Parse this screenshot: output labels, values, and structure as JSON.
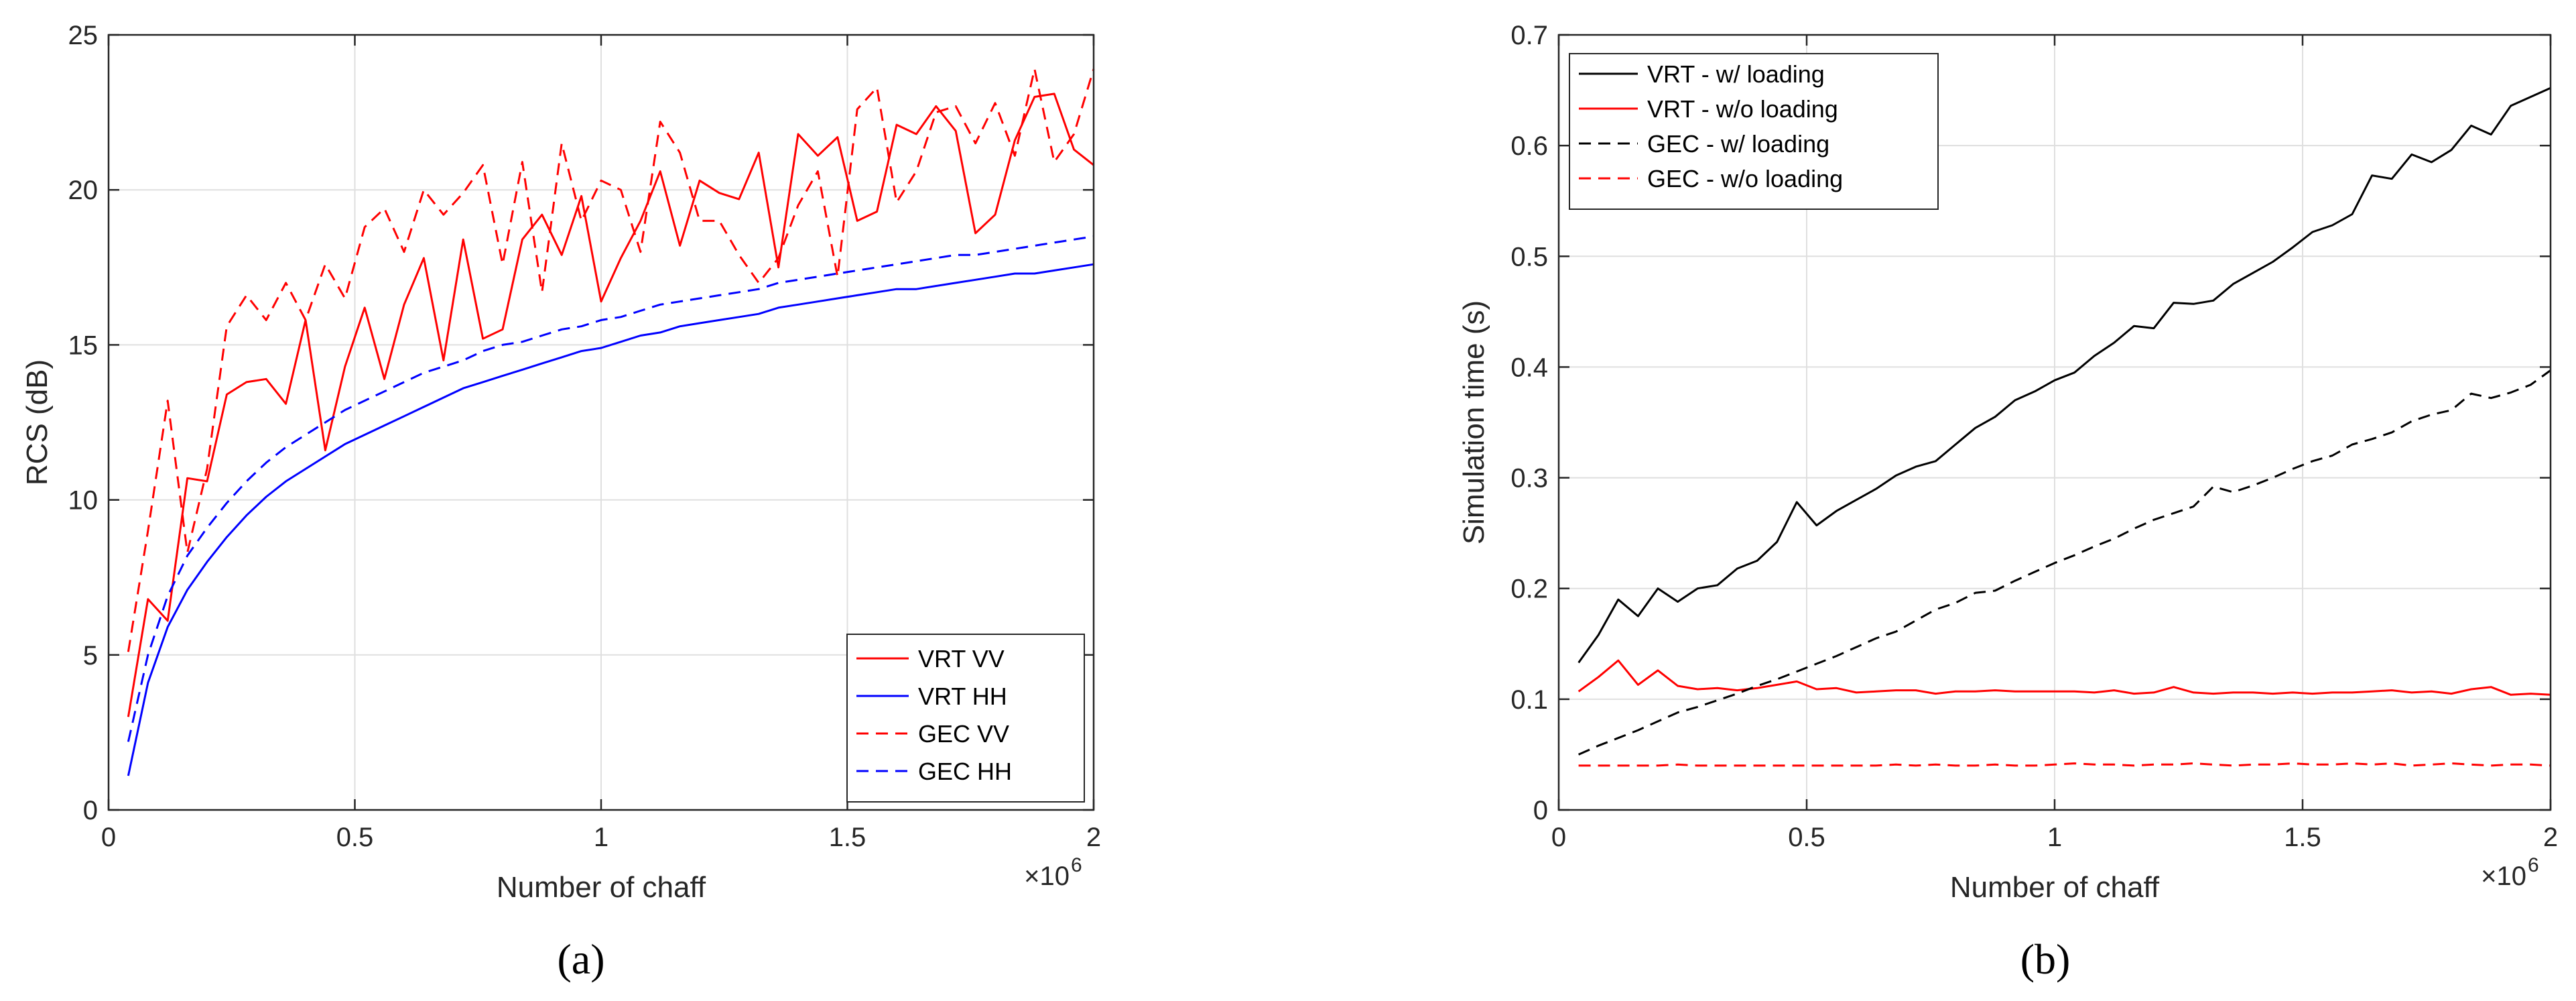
{
  "panel_labels": [
    "(a)",
    "(b)"
  ],
  "chart_data": [
    {
      "type": "line",
      "panel": "(a)",
      "title": "",
      "xlabel": "Number of chaff",
      "ylabel": "RCS (dB)",
      "x_multiplier_label": "×10",
      "x_multiplier_exp": "6",
      "xlim": [
        0,
        2
      ],
      "ylim": [
        0,
        25
      ],
      "xticks": [
        0,
        0.5,
        1,
        1.5,
        2
      ],
      "xtick_labels": [
        "0",
        "0.5",
        "1",
        "1.5",
        "2"
      ],
      "yticks": [
        0,
        5,
        10,
        15,
        20,
        25
      ],
      "ytick_labels": [
        "0",
        "5",
        "10",
        "15",
        "20",
        "25"
      ],
      "grid": true,
      "legend_position": "bottom-right",
      "series": [
        {
          "name": "VRT VV",
          "color": "#ff0000",
          "dash": "solid",
          "x": [
            0.04,
            0.08,
            0.12,
            0.16,
            0.2,
            0.24,
            0.28,
            0.32,
            0.36,
            0.4,
            0.44,
            0.48,
            0.52,
            0.56,
            0.6,
            0.64,
            0.68,
            0.72,
            0.76,
            0.8,
            0.84,
            0.88,
            0.92,
            0.96,
            1.0,
            1.04,
            1.08,
            1.12,
            1.16,
            1.2,
            1.24,
            1.28,
            1.32,
            1.36,
            1.4,
            1.44,
            1.48,
            1.52,
            1.56,
            1.6,
            1.64,
            1.68,
            1.72,
            1.76,
            1.8,
            1.84,
            1.88,
            1.92,
            1.96,
            2.0
          ],
          "y": [
            3.0,
            6.8,
            6.1,
            10.7,
            10.6,
            13.4,
            13.8,
            13.9,
            13.1,
            15.8,
            11.6,
            14.3,
            16.2,
            13.9,
            16.3,
            17.8,
            14.5,
            18.4,
            15.2,
            15.5,
            18.4,
            19.2,
            17.9,
            19.8,
            16.4,
            17.8,
            19.0,
            20.6,
            18.2,
            20.3,
            19.9,
            19.7,
            21.2,
            17.5,
            21.8,
            21.1,
            21.7,
            19.0,
            19.3,
            22.1,
            21.8,
            22.7,
            21.9,
            18.6,
            19.2,
            21.6,
            23.0,
            23.1,
            21.3,
            20.8
          ]
        },
        {
          "name": "VRT HH",
          "color": "#0000ff",
          "dash": "solid",
          "x": [
            0.04,
            0.08,
            0.12,
            0.16,
            0.2,
            0.24,
            0.28,
            0.32,
            0.36,
            0.4,
            0.44,
            0.48,
            0.52,
            0.56,
            0.6,
            0.64,
            0.68,
            0.72,
            0.76,
            0.8,
            0.84,
            0.88,
            0.92,
            0.96,
            1.0,
            1.04,
            1.08,
            1.12,
            1.16,
            1.2,
            1.24,
            1.28,
            1.32,
            1.36,
            1.4,
            1.44,
            1.48,
            1.52,
            1.56,
            1.6,
            1.64,
            1.68,
            1.72,
            1.76,
            1.8,
            1.84,
            1.88,
            1.92,
            1.96,
            2.0
          ],
          "y": [
            1.1,
            4.1,
            5.9,
            7.1,
            8.0,
            8.8,
            9.5,
            10.1,
            10.6,
            11.0,
            11.4,
            11.8,
            12.1,
            12.4,
            12.7,
            13.0,
            13.3,
            13.6,
            13.8,
            14.0,
            14.2,
            14.4,
            14.6,
            14.8,
            14.9,
            15.1,
            15.3,
            15.4,
            15.6,
            15.7,
            15.8,
            15.9,
            16.0,
            16.2,
            16.3,
            16.4,
            16.5,
            16.6,
            16.7,
            16.8,
            16.8,
            16.9,
            17.0,
            17.1,
            17.2,
            17.3,
            17.3,
            17.4,
            17.5,
            17.6
          ]
        },
        {
          "name": "GEC VV",
          "color": "#ff0000",
          "dash": "dashed",
          "x": [
            0.04,
            0.08,
            0.12,
            0.16,
            0.2,
            0.24,
            0.28,
            0.32,
            0.36,
            0.4,
            0.44,
            0.48,
            0.52,
            0.56,
            0.6,
            0.64,
            0.68,
            0.72,
            0.76,
            0.8,
            0.84,
            0.88,
            0.92,
            0.96,
            1.0,
            1.04,
            1.08,
            1.12,
            1.16,
            1.2,
            1.24,
            1.28,
            1.32,
            1.36,
            1.4,
            1.44,
            1.48,
            1.52,
            1.56,
            1.6,
            1.64,
            1.68,
            1.72,
            1.76,
            1.8,
            1.84,
            1.88,
            1.92,
            1.96,
            2.0
          ],
          "y": [
            5.1,
            9.0,
            13.2,
            8.3,
            11.0,
            15.6,
            16.6,
            15.8,
            17.0,
            15.8,
            17.6,
            16.5,
            18.8,
            19.4,
            18.0,
            20.0,
            19.2,
            19.9,
            20.8,
            17.6,
            20.9,
            16.7,
            21.5,
            19.0,
            20.3,
            20.0,
            18.0,
            22.2,
            21.2,
            19.0,
            19.0,
            17.9,
            17.0,
            17.8,
            19.5,
            20.6,
            17.2,
            22.6,
            23.3,
            19.6,
            20.6,
            22.5,
            22.7,
            21.5,
            22.8,
            21.1,
            23.9,
            20.9,
            21.8,
            23.9
          ]
        },
        {
          "name": "GEC HH",
          "color": "#0000ff",
          "dash": "dashed",
          "x": [
            0.04,
            0.08,
            0.12,
            0.16,
            0.2,
            0.24,
            0.28,
            0.32,
            0.36,
            0.4,
            0.44,
            0.48,
            0.52,
            0.56,
            0.6,
            0.64,
            0.68,
            0.72,
            0.76,
            0.8,
            0.84,
            0.88,
            0.92,
            0.96,
            1.0,
            1.04,
            1.08,
            1.12,
            1.16,
            1.2,
            1.24,
            1.28,
            1.32,
            1.36,
            1.4,
            1.44,
            1.48,
            1.52,
            1.56,
            1.6,
            1.64,
            1.68,
            1.72,
            1.76,
            1.8,
            1.84,
            1.88,
            1.92,
            1.96,
            2.0
          ],
          "y": [
            2.2,
            5.0,
            6.9,
            8.2,
            9.1,
            9.9,
            10.6,
            11.2,
            11.7,
            12.1,
            12.5,
            12.9,
            13.2,
            13.5,
            13.8,
            14.1,
            14.3,
            14.5,
            14.8,
            15.0,
            15.1,
            15.3,
            15.5,
            15.6,
            15.8,
            15.9,
            16.1,
            16.3,
            16.4,
            16.5,
            16.6,
            16.7,
            16.8,
            17.0,
            17.1,
            17.2,
            17.3,
            17.4,
            17.5,
            17.6,
            17.7,
            17.8,
            17.9,
            17.9,
            18.0,
            18.1,
            18.2,
            18.3,
            18.4,
            18.5
          ]
        }
      ]
    },
    {
      "type": "line",
      "panel": "(b)",
      "title": "",
      "xlabel": "Number of chaff",
      "ylabel": "Simulation time (s)",
      "x_multiplier_label": "×10",
      "x_multiplier_exp": "6",
      "xlim": [
        0,
        2
      ],
      "ylim": [
        0,
        0.7
      ],
      "xticks": [
        0,
        0.5,
        1,
        1.5,
        2
      ],
      "xtick_labels": [
        "0",
        "0.5",
        "1",
        "1.5",
        "2"
      ],
      "yticks": [
        0,
        0.1,
        0.2,
        0.3,
        0.4,
        0.5,
        0.6,
        0.7
      ],
      "ytick_labels": [
        "0",
        "0.1",
        "0.2",
        "0.3",
        "0.4",
        "0.5",
        "0.6",
        "0.7"
      ],
      "grid": true,
      "legend_position": "top-left",
      "series": [
        {
          "name": "VRT - w/ loading",
          "color": "#000000",
          "dash": "solid",
          "x": [
            0.04,
            0.08,
            0.12,
            0.16,
            0.2,
            0.24,
            0.28,
            0.32,
            0.36,
            0.4,
            0.44,
            0.48,
            0.52,
            0.56,
            0.6,
            0.64,
            0.68,
            0.72,
            0.76,
            0.8,
            0.84,
            0.88,
            0.92,
            0.96,
            1.0,
            1.04,
            1.08,
            1.12,
            1.16,
            1.2,
            1.24,
            1.28,
            1.32,
            1.36,
            1.4,
            1.44,
            1.48,
            1.52,
            1.56,
            1.6,
            1.64,
            1.68,
            1.72,
            1.76,
            1.8,
            1.84,
            1.88,
            1.92,
            1.96,
            2.0
          ],
          "y": [
            0.133,
            0.158,
            0.19,
            0.175,
            0.2,
            0.188,
            0.2,
            0.203,
            0.218,
            0.225,
            0.242,
            0.278,
            0.257,
            0.27,
            0.28,
            0.29,
            0.302,
            0.31,
            0.315,
            0.33,
            0.345,
            0.355,
            0.37,
            0.378,
            0.388,
            0.395,
            0.41,
            0.422,
            0.437,
            0.435,
            0.458,
            0.457,
            0.46,
            0.475,
            0.485,
            0.495,
            0.508,
            0.522,
            0.528,
            0.538,
            0.573,
            0.57,
            0.592,
            0.585,
            0.596,
            0.618,
            0.61,
            0.636,
            0.644,
            0.652
          ]
        },
        {
          "name": "VRT - w/o loading",
          "color": "#ff0000",
          "dash": "solid",
          "x": [
            0.04,
            0.08,
            0.12,
            0.16,
            0.2,
            0.24,
            0.28,
            0.32,
            0.36,
            0.4,
            0.44,
            0.48,
            0.52,
            0.56,
            0.6,
            0.64,
            0.68,
            0.72,
            0.76,
            0.8,
            0.84,
            0.88,
            0.92,
            0.96,
            1.0,
            1.04,
            1.08,
            1.12,
            1.16,
            1.2,
            1.24,
            1.28,
            1.32,
            1.36,
            1.4,
            1.44,
            1.48,
            1.52,
            1.56,
            1.6,
            1.64,
            1.68,
            1.72,
            1.76,
            1.8,
            1.84,
            1.88,
            1.92,
            1.96,
            2.0
          ],
          "y": [
            0.107,
            0.12,
            0.135,
            0.113,
            0.126,
            0.112,
            0.109,
            0.11,
            0.108,
            0.11,
            0.113,
            0.116,
            0.109,
            0.11,
            0.106,
            0.107,
            0.108,
            0.108,
            0.105,
            0.107,
            0.107,
            0.108,
            0.107,
            0.107,
            0.107,
            0.107,
            0.106,
            0.108,
            0.105,
            0.106,
            0.111,
            0.106,
            0.105,
            0.106,
            0.106,
            0.105,
            0.106,
            0.105,
            0.106,
            0.106,
            0.107,
            0.108,
            0.106,
            0.107,
            0.105,
            0.109,
            0.111,
            0.104,
            0.105,
            0.104
          ]
        },
        {
          "name": "GEC - w/ loading",
          "color": "#000000",
          "dash": "dashed",
          "x": [
            0.04,
            0.08,
            0.12,
            0.16,
            0.2,
            0.24,
            0.28,
            0.32,
            0.36,
            0.4,
            0.44,
            0.48,
            0.52,
            0.56,
            0.6,
            0.64,
            0.68,
            0.72,
            0.76,
            0.8,
            0.84,
            0.88,
            0.92,
            0.96,
            1.0,
            1.04,
            1.08,
            1.12,
            1.16,
            1.2,
            1.24,
            1.28,
            1.32,
            1.36,
            1.4,
            1.44,
            1.48,
            1.52,
            1.56,
            1.6,
            1.64,
            1.68,
            1.72,
            1.76,
            1.8,
            1.84,
            1.88,
            1.92,
            1.96,
            2.0
          ],
          "y": [
            0.05,
            0.058,
            0.065,
            0.072,
            0.08,
            0.088,
            0.093,
            0.099,
            0.105,
            0.112,
            0.118,
            0.125,
            0.132,
            0.139,
            0.147,
            0.155,
            0.161,
            0.171,
            0.181,
            0.187,
            0.196,
            0.198,
            0.207,
            0.215,
            0.223,
            0.23,
            0.238,
            0.245,
            0.254,
            0.262,
            0.268,
            0.274,
            0.292,
            0.287,
            0.293,
            0.3,
            0.308,
            0.315,
            0.32,
            0.33,
            0.335,
            0.341,
            0.351,
            0.357,
            0.361,
            0.376,
            0.372,
            0.377,
            0.384,
            0.397
          ]
        },
        {
          "name": "GEC - w/o loading",
          "color": "#ff0000",
          "dash": "dashed",
          "x": [
            0.04,
            0.08,
            0.12,
            0.16,
            0.2,
            0.24,
            0.28,
            0.32,
            0.36,
            0.4,
            0.44,
            0.48,
            0.52,
            0.56,
            0.6,
            0.64,
            0.68,
            0.72,
            0.76,
            0.8,
            0.84,
            0.88,
            0.92,
            0.96,
            1.0,
            1.04,
            1.08,
            1.12,
            1.16,
            1.2,
            1.24,
            1.28,
            1.32,
            1.36,
            1.4,
            1.44,
            1.48,
            1.52,
            1.56,
            1.6,
            1.64,
            1.68,
            1.72,
            1.76,
            1.8,
            1.84,
            1.88,
            1.92,
            1.96,
            2.0
          ],
          "y": [
            0.04,
            0.04,
            0.04,
            0.04,
            0.04,
            0.041,
            0.04,
            0.04,
            0.04,
            0.04,
            0.04,
            0.04,
            0.04,
            0.04,
            0.04,
            0.04,
            0.041,
            0.04,
            0.041,
            0.04,
            0.04,
            0.041,
            0.04,
            0.04,
            0.041,
            0.042,
            0.041,
            0.041,
            0.04,
            0.041,
            0.041,
            0.042,
            0.041,
            0.04,
            0.041,
            0.041,
            0.042,
            0.041,
            0.041,
            0.042,
            0.041,
            0.042,
            0.04,
            0.041,
            0.042,
            0.041,
            0.04,
            0.041,
            0.041,
            0.04
          ]
        }
      ]
    }
  ]
}
